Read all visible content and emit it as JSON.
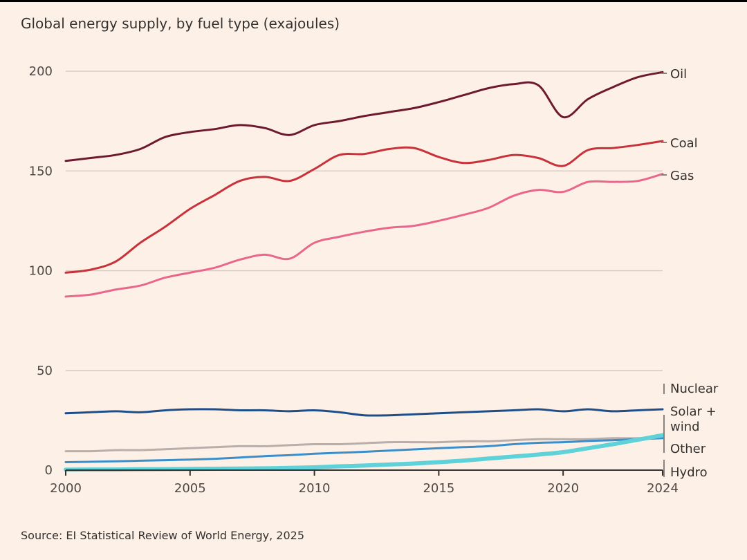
{
  "chart_data": {
    "type": "line",
    "title": "Global energy supply, by fuel type (exajoules)",
    "source": "Source: EI Statistical Review of World Energy, 2025",
    "xlabel": "",
    "ylabel": "",
    "xlim": [
      2000,
      2024
    ],
    "ylim": [
      0,
      200
    ],
    "x_ticks": [
      "2000",
      "2005",
      "2010",
      "2015",
      "2020",
      "2024"
    ],
    "y_ticks": [
      "0",
      "50",
      "100",
      "150",
      "200"
    ],
    "grid": true,
    "x": [
      2000,
      2001,
      2002,
      2003,
      2004,
      2005,
      2006,
      2007,
      2008,
      2009,
      2010,
      2011,
      2012,
      2013,
      2014,
      2015,
      2016,
      2017,
      2018,
      2019,
      2020,
      2021,
      2022,
      2023,
      2024
    ],
    "series": [
      {
        "name": "Oil",
        "label": "Oil",
        "color": "#6e1a2e",
        "values": [
          155,
          156.5,
          158,
          161,
          167,
          169.5,
          171,
          173,
          171.5,
          168,
          173,
          175,
          177.5,
          179.5,
          181.5,
          184.5,
          188,
          191.5,
          193.5,
          193,
          177,
          186,
          192,
          197,
          199.5
        ]
      },
      {
        "name": "Coal",
        "label": "Coal",
        "color": "#c8323a",
        "values": [
          99,
          100.5,
          104.5,
          114,
          122,
          131,
          138,
          145,
          147,
          145,
          151,
          158,
          158.5,
          161,
          161.5,
          157,
          154,
          155.5,
          158,
          156.5,
          152.5,
          160.5,
          161.5,
          163,
          165
        ]
      },
      {
        "name": "Gas",
        "label": "Gas",
        "color": "#e8678a",
        "values": [
          87,
          88,
          90.5,
          92.5,
          96.5,
          99,
          101.5,
          105.5,
          108,
          106,
          114,
          117,
          119.5,
          121.5,
          122.5,
          125,
          128,
          131.5,
          137.5,
          140.5,
          139.5,
          144.5,
          144.5,
          145,
          148.5
        ]
      },
      {
        "name": "Nuclear",
        "label": "Nuclear",
        "color": "#1e4e8a",
        "values": [
          28.5,
          29,
          29.5,
          29,
          30,
          30.5,
          30.5,
          30,
          30,
          29.5,
          30,
          29,
          27.5,
          27.5,
          28,
          28.5,
          29,
          29.5,
          30,
          30.5,
          29.5,
          30.5,
          29.5,
          30,
          30.5
        ]
      },
      {
        "name": "Other",
        "label": "Other",
        "color": "#b8aeaa",
        "values": [
          9.5,
          9.5,
          10,
          10,
          10.5,
          11,
          11.5,
          12,
          12,
          12.5,
          13,
          13,
          13.5,
          14,
          14,
          14,
          14.5,
          14.5,
          15,
          15.5,
          15.5,
          15.5,
          16,
          16,
          16.5
        ]
      },
      {
        "name": "Hydro",
        "label": "Hydro",
        "color": "#3a8ecb",
        "values": [
          4,
          4.2,
          4.4,
          4.7,
          5,
          5.3,
          5.7,
          6.3,
          7,
          7.5,
          8.2,
          8.7,
          9.2,
          9.8,
          10.4,
          11,
          11.5,
          12,
          13,
          13.7,
          14,
          14.6,
          15,
          15.5,
          16
        ]
      },
      {
        "name": "Solar + wind",
        "label": "Solar +\nwind",
        "color": "#5ed2d8",
        "values": [
          0.2,
          0.3,
          0.3,
          0.4,
          0.5,
          0.6,
          0.7,
          0.8,
          0.9,
          1.1,
          1.4,
          1.9,
          2.3,
          2.8,
          3.3,
          4,
          4.8,
          5.8,
          6.8,
          7.8,
          9,
          11,
          13,
          15.2,
          17.5
        ]
      }
    ]
  },
  "colors": {
    "background": "#fdf0e6",
    "gridline": "#d9cdc3",
    "axis": "#33302e",
    "text": "#33302e",
    "tick_text": "#4d4845"
  }
}
